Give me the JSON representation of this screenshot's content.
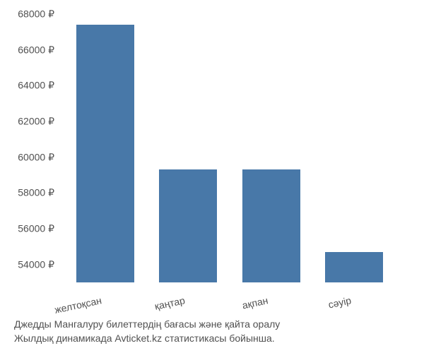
{
  "chart": {
    "type": "bar",
    "categories": [
      "желтоқсан",
      "қаңтар",
      "ақпан",
      "сәуір"
    ],
    "values": [
      67400,
      59300,
      59300,
      54700
    ],
    "bar_color": "#4878a8",
    "background_color": "#ffffff",
    "ylim": [
      53000,
      68000
    ],
    "yticks": [
      54000,
      56000,
      58000,
      60000,
      62000,
      64000,
      66000,
      68000
    ],
    "ytick_labels": [
      "54000 ₽",
      "56000 ₽",
      "58000 ₽",
      "60000 ₽",
      "62000 ₽",
      "64000 ₽",
      "66000 ₽",
      "68000 ₽"
    ],
    "tick_fontsize": 14,
    "tick_color": "#505050",
    "bar_width_ratio": 0.7,
    "x_label_rotation": -12
  },
  "caption": {
    "line1": "Джедды Мангалуру билеттердің бағасы және қайта оралу",
    "line2": "Жылдық динамикада Avticket.kz статистикасы бойынша."
  }
}
